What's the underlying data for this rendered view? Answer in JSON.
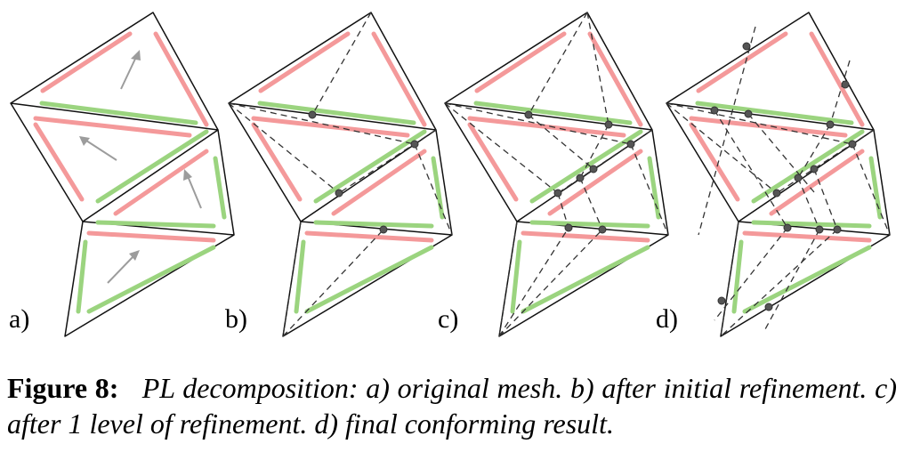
{
  "panels": [
    {
      "label": "a)"
    },
    {
      "label": "b)"
    },
    {
      "label": "c)"
    },
    {
      "label": "d)"
    }
  ],
  "caption": {
    "lead": "Figure 8:",
    "body": "PL decomposition: a) original mesh. b) after initial refinement. c) after 1 level of refinement. d) final conforming result."
  },
  "colors": {
    "red": "#f4999a",
    "green": "#9bd47f",
    "mesh": "#111111",
    "arrow": "#9c9c9c",
    "point": "#555555"
  }
}
